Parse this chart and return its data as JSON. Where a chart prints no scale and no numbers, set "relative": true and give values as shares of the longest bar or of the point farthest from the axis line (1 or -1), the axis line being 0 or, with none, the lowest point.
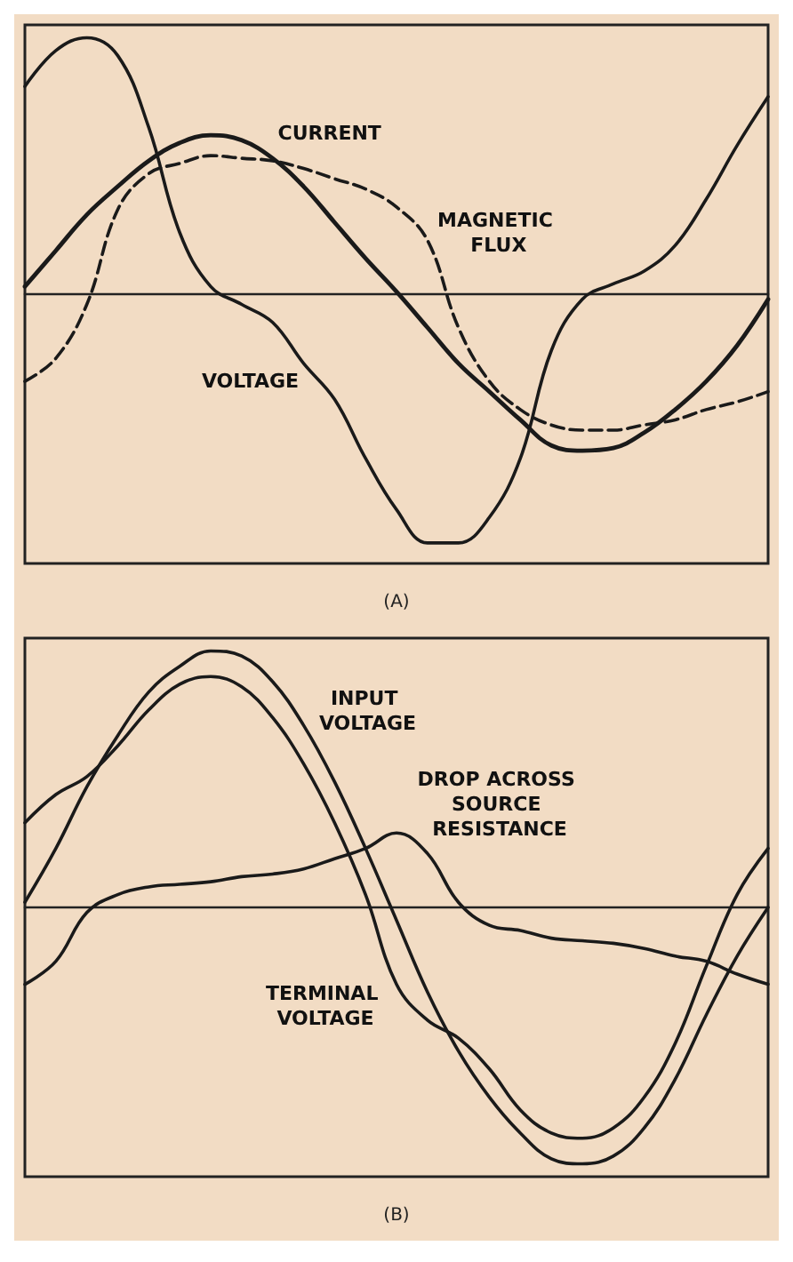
{
  "chart_data": [
    {
      "type": "line",
      "title": "(A)",
      "relative": true,
      "grid": false,
      "legend": false,
      "marker": "none",
      "categories": [
        null,
        null,
        null,
        null,
        null,
        null,
        null,
        null,
        null,
        null,
        null,
        null,
        null,
        null,
        null,
        null,
        null,
        null,
        null,
        null,
        null,
        null,
        null,
        null,
        null
      ],
      "series": [
        {
          "name": "CURRENT",
          "color": "#1a1a1a",
          "line_style": "solid",
          "values": [
            0.03,
            0.17,
            0.31,
            0.42,
            0.52,
            0.59,
            0.62,
            0.6,
            0.53,
            0.42,
            0.28,
            0.14,
            0.01,
            -0.13,
            -0.27,
            -0.38,
            -0.49,
            -0.59,
            -0.61,
            -0.6,
            -0.54,
            -0.45,
            -0.34,
            -0.2,
            -0.02
          ]
        },
        {
          "name": "MAGNETIC FLUX",
          "color": "#1a1a1a",
          "line_style": "dashed",
          "values": [
            -0.34,
            -0.25,
            -0.04,
            0.33,
            0.47,
            0.51,
            0.54,
            0.53,
            0.52,
            0.49,
            0.45,
            0.41,
            0.34,
            0.21,
            -0.13,
            -0.34,
            -0.45,
            -0.51,
            -0.53,
            -0.53,
            -0.51,
            -0.49,
            -0.45,
            -0.42,
            -0.38
          ]
        },
        {
          "name": "VOLTAGE",
          "color": "#1a1a1a",
          "line_style": "solid",
          "values": [
            0.81,
            0.95,
            1.0,
            0.93,
            0.65,
            0.24,
            0.03,
            -0.04,
            -0.11,
            -0.27,
            -0.41,
            -0.64,
            -0.84,
            -0.97,
            -0.97,
            -0.87,
            -0.64,
            -0.22,
            -0.02,
            0.04,
            0.09,
            0.19,
            0.37,
            0.58,
            0.77
          ]
        }
      ]
    },
    {
      "type": "line",
      "title": "(B)",
      "relative": true,
      "grid": false,
      "legend": false,
      "marker": "none",
      "categories": [
        null,
        null,
        null,
        null,
        null,
        null,
        null,
        null,
        null,
        null,
        null,
        null,
        null,
        null,
        null,
        null,
        null,
        null,
        null,
        null,
        null,
        null,
        null,
        null,
        null
      ],
      "series": [
        {
          "name": "INPUT VOLTAGE",
          "color": "#1a1a1a",
          "line_style": "solid",
          "values": [
            0.02,
            0.23,
            0.47,
            0.67,
            0.84,
            0.94,
            1.0,
            0.98,
            0.88,
            0.71,
            0.49,
            0.23,
            -0.05,
            -0.33,
            -0.56,
            -0.74,
            -0.88,
            -0.98,
            -1.0,
            -0.97,
            -0.86,
            -0.67,
            -0.42,
            -0.19,
            0.0
          ]
        },
        {
          "name": "DROP ACROSS SOURCE RESISTANCE",
          "color": "#1a1a1a",
          "line_style": "solid",
          "values": [
            -0.3,
            -0.21,
            -0.02,
            0.05,
            0.08,
            0.09,
            0.1,
            0.12,
            0.13,
            0.15,
            0.19,
            0.23,
            0.29,
            0.21,
            0.02,
            -0.07,
            -0.09,
            -0.12,
            -0.13,
            -0.14,
            -0.16,
            -0.19,
            -0.21,
            -0.26,
            -0.3
          ]
        },
        {
          "name": "TERMINAL VOLTAGE",
          "color": "#1a1a1a",
          "line_style": "solid",
          "values": [
            0.33,
            0.44,
            0.51,
            0.63,
            0.77,
            0.87,
            0.9,
            0.86,
            0.74,
            0.56,
            0.33,
            0.05,
            -0.3,
            -0.44,
            -0.51,
            -0.63,
            -0.79,
            -0.88,
            -0.9,
            -0.86,
            -0.74,
            -0.53,
            -0.23,
            0.05,
            0.23
          ]
        }
      ]
    }
  ]
}
